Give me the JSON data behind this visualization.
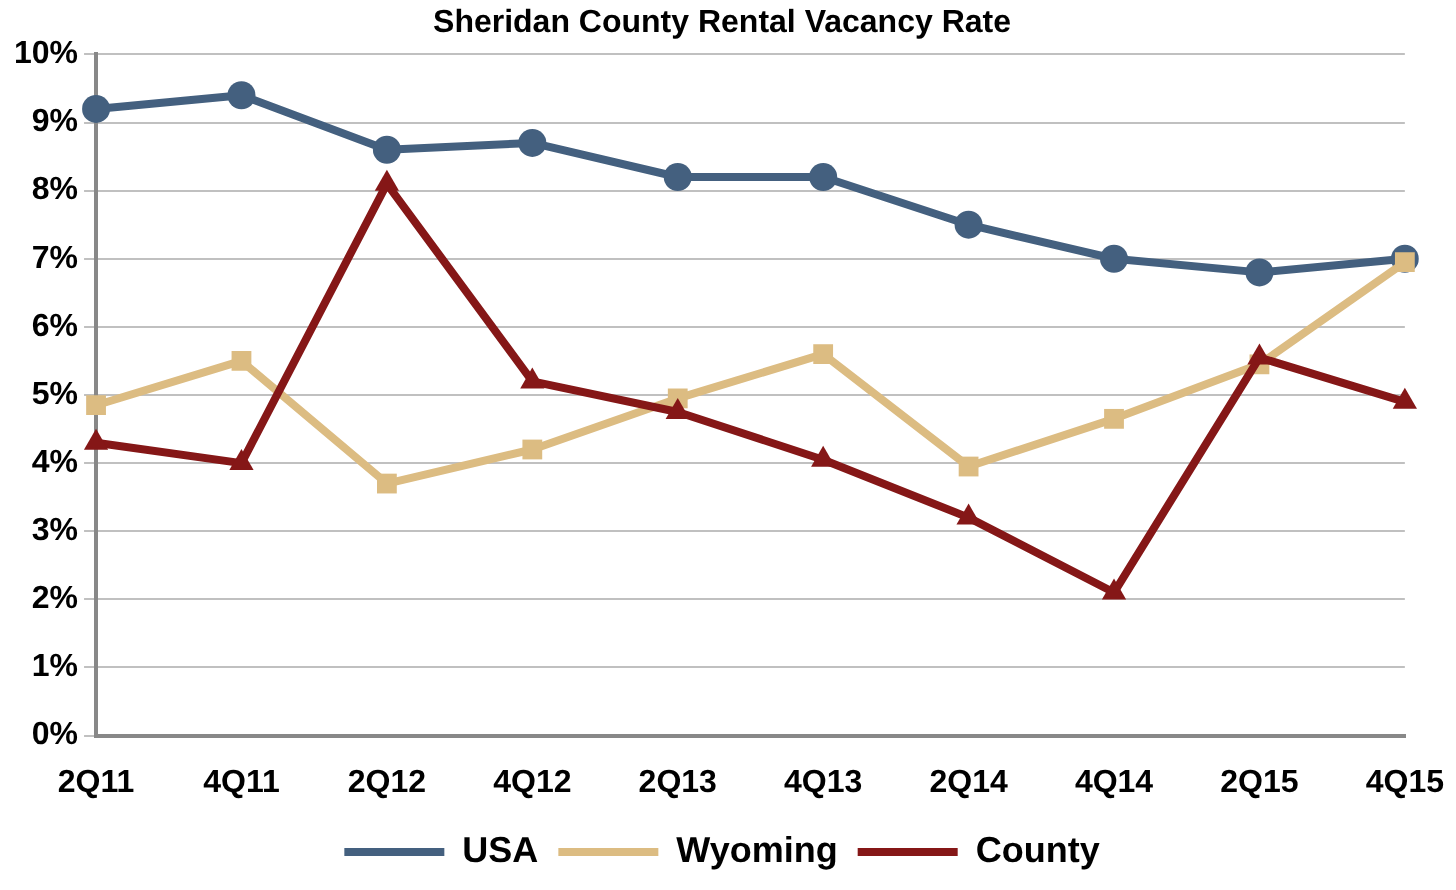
{
  "chart_data": {
    "type": "line",
    "title": "Sheridan County Rental Vacancy Rate",
    "categories": [
      "2Q11",
      "4Q11",
      "2Q12",
      "4Q12",
      "2Q13",
      "4Q13",
      "2Q14",
      "4Q14",
      "2Q15",
      "4Q15"
    ],
    "series": [
      {
        "name": "USA",
        "color": "#44607f",
        "marker": "circle",
        "values": [
          9.2,
          9.4,
          8.6,
          8.7,
          8.2,
          8.2,
          7.5,
          7.0,
          6.8,
          7.0
        ]
      },
      {
        "name": "Wyoming",
        "color": "#dcbc82",
        "marker": "square",
        "values": [
          4.85,
          5.5,
          3.7,
          4.2,
          4.95,
          5.6,
          3.95,
          4.65,
          5.45,
          6.95
        ]
      },
      {
        "name": "County",
        "color": "#851717",
        "marker": "triangle",
        "values": [
          4.3,
          4.0,
          8.1,
          5.2,
          4.75,
          4.05,
          3.2,
          2.1,
          5.55,
          4.9
        ]
      }
    ],
    "ylim": [
      0,
      10
    ],
    "yticks": [
      {
        "value": 0,
        "label": "0%"
      },
      {
        "value": 1,
        "label": "1%"
      },
      {
        "value": 2,
        "label": "2%"
      },
      {
        "value": 3,
        "label": "3%"
      },
      {
        "value": 4,
        "label": "4%"
      },
      {
        "value": 5,
        "label": "5%"
      },
      {
        "value": 6,
        "label": "6%"
      },
      {
        "value": 7,
        "label": "7%"
      },
      {
        "value": 8,
        "label": "8%"
      },
      {
        "value": 9,
        "label": "9%"
      },
      {
        "value": 10,
        "label": "10%"
      }
    ],
    "grid": "y",
    "legend": "bottom",
    "line_style": "solid"
  }
}
